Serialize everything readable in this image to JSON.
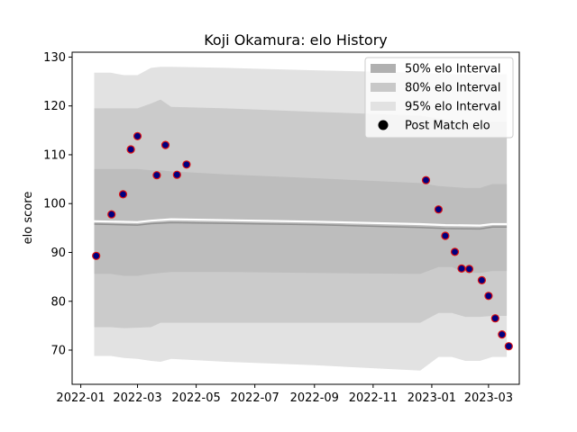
{
  "chart_data": {
    "type": "scatter",
    "title": "Koji Okamura: elo History",
    "xlabel": "",
    "ylabel": "elo score",
    "xlim": [
      "2021-12-23",
      "2023-04-02"
    ],
    "ylim": [
      63,
      131
    ],
    "x_ticks": [
      "2022-01",
      "2022-03",
      "2022-05",
      "2022-07",
      "2022-09",
      "2022-11",
      "2023-01",
      "2023-03"
    ],
    "y_ticks": [
      70,
      80,
      90,
      100,
      110,
      120,
      130
    ],
    "grid": false,
    "legend_position": "top-right",
    "legend": [
      {
        "label": "50% elo Interval",
        "color": "#b0b0b0",
        "kind": "patch"
      },
      {
        "label": "80% elo Interval",
        "color": "#c8c8c8",
        "kind": "patch"
      },
      {
        "label": "95% elo Interval",
        "color": "#e2e2e2",
        "kind": "patch"
      },
      {
        "label": "Post Match elo",
        "color": "#000000",
        "kind": "marker"
      }
    ],
    "bands": {
      "dates": [
        "2022-01-15",
        "2022-02-01",
        "2022-02-15",
        "2022-03-01",
        "2022-03-15",
        "2022-03-25",
        "2022-04-05",
        "2022-06-01",
        "2022-09-01",
        "2022-12-20",
        "2023-01-08",
        "2023-01-22",
        "2023-02-05",
        "2023-02-20",
        "2023-03-05",
        "2023-03-20"
      ],
      "b95": {
        "color": "#e2e2e2",
        "upper": [
          126.8,
          126.8,
          126.3,
          126.3,
          127.8,
          128.0,
          128.0,
          127.8,
          127.3,
          126.8,
          126.6,
          126.5,
          126.5,
          126.5,
          126.5,
          126.5
        ],
        "lower": [
          68.8,
          68.8,
          68.4,
          68.2,
          67.8,
          67.6,
          68.2,
          67.6,
          66.9,
          65.8,
          68.6,
          68.6,
          67.8,
          67.8,
          68.6,
          68.6
        ]
      },
      "b80": {
        "color": "#cbcbcb",
        "upper": [
          119.5,
          119.5,
          119.5,
          119.5,
          120.5,
          121.3,
          119.8,
          119.5,
          118.8,
          118.0,
          117.4,
          117.0,
          116.6,
          116.4,
          116.8,
          116.8
        ],
        "lower": [
          74.7,
          74.7,
          74.5,
          74.6,
          74.7,
          75.6,
          75.6,
          75.6,
          75.6,
          75.6,
          77.6,
          77.6,
          76.8,
          76.8,
          77.0,
          77.0
        ]
      },
      "b50": {
        "color": "#bdbdbd",
        "upper": [
          107.1,
          107.1,
          107.1,
          107.1,
          106.8,
          106.8,
          106.6,
          106.0,
          105.2,
          104.2,
          103.6,
          103.4,
          103.2,
          103.2,
          104.0,
          104.0
        ],
        "lower": [
          85.6,
          85.6,
          85.2,
          85.2,
          85.6,
          85.8,
          86.0,
          86.0,
          85.8,
          85.6,
          87.0,
          87.0,
          85.8,
          85.8,
          86.2,
          86.2
        ]
      }
    },
    "lines": [
      {
        "color": "#ffffff",
        "width": 2.2,
        "x": [
          "2022-01-15",
          "2022-03-01",
          "2022-03-15",
          "2022-04-05",
          "2022-09-01",
          "2022-12-20",
          "2023-01-15",
          "2023-02-20",
          "2023-03-05",
          "2023-03-20"
        ],
        "y": [
          96.4,
          96.2,
          96.5,
          96.8,
          96.3,
          95.8,
          95.6,
          95.5,
          95.8,
          95.8
        ]
      },
      {
        "color": "#8f8f8f",
        "width": 1.5,
        "x": [
          "2022-01-15",
          "2022-03-01",
          "2022-03-15",
          "2022-04-05",
          "2022-09-01",
          "2022-12-20",
          "2023-01-15",
          "2023-02-20",
          "2023-03-05",
          "2023-03-20"
        ],
        "y": [
          95.8,
          95.6,
          95.9,
          96.1,
          95.7,
          95.1,
          94.9,
          94.8,
          95.2,
          95.2
        ]
      }
    ],
    "points": {
      "fill": "#000080",
      "edge": "#dd1111",
      "x": [
        "2022-01-17",
        "2022-02-02",
        "2022-02-14",
        "2022-02-22",
        "2022-03-01",
        "2022-03-21",
        "2022-03-30",
        "2022-04-11",
        "2022-04-21",
        "2022-12-26",
        "2023-01-08",
        "2023-01-15",
        "2023-01-25",
        "2023-02-01",
        "2023-02-09",
        "2023-02-22",
        "2023-03-01",
        "2023-03-08",
        "2023-03-15",
        "2023-03-22"
      ],
      "y": [
        89.3,
        97.8,
        101.9,
        111.1,
        113.8,
        105.8,
        112.0,
        105.9,
        108.0,
        104.8,
        98.8,
        93.4,
        90.1,
        86.7,
        86.6,
        84.3,
        81.1,
        76.5,
        73.2,
        70.8
      ]
    }
  }
}
